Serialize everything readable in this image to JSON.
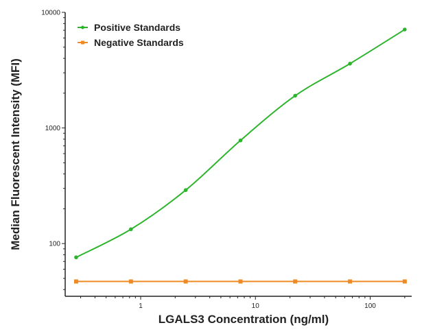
{
  "chart_data": {
    "type": "line",
    "title": "",
    "xlabel": "LGALS3 Concentration (ng/ml)",
    "ylabel": "Median Fluorescent Intensity (MFI)",
    "xscale": "log",
    "yscale": "log",
    "xlim": [
      0.22,
      230
    ],
    "ylim": [
      35,
      10000
    ],
    "x_ticks": [
      1,
      10,
      100
    ],
    "x_tick_labels": [
      "1",
      "10",
      "100"
    ],
    "y_ticks": [
      100,
      1000,
      10000
    ],
    "y_tick_labels": [
      "100",
      "1000",
      "10000"
    ],
    "grid": false,
    "legend_position": "top-left",
    "series": [
      {
        "name": "Positive Standards",
        "color": "#2db42d",
        "marker": "circle",
        "fit": "smooth curve",
        "x": [
          0.274,
          0.823,
          2.47,
          7.41,
          22.2,
          66.7,
          200
        ],
        "y": [
          76,
          133,
          290,
          780,
          1900,
          3600,
          7100
        ]
      },
      {
        "name": "Negative Standards",
        "color": "#f08a24",
        "marker": "square",
        "fit": "line",
        "x": [
          0.274,
          0.823,
          2.47,
          7.41,
          22.2,
          66.7,
          200
        ],
        "y": [
          47,
          47,
          47,
          47,
          47,
          47,
          47
        ]
      }
    ]
  }
}
